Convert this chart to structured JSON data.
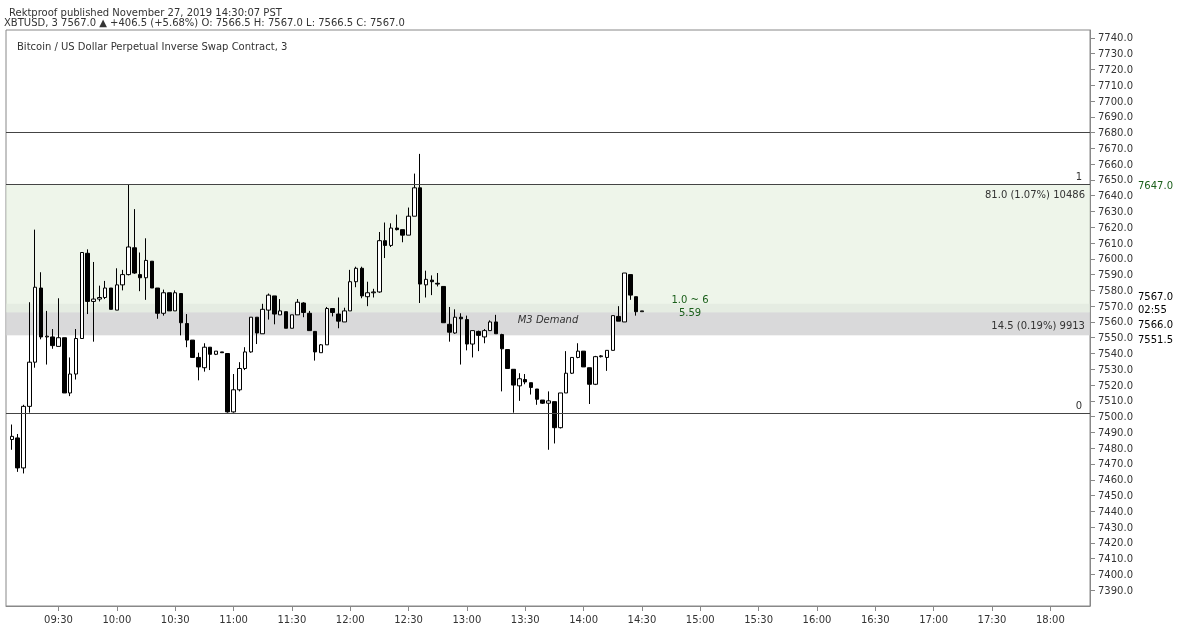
{
  "chart_data": {
    "type": "candlestick",
    "title": "Bitcoin / US Dollar Perpetual Inverse Swap Contract, 3",
    "subtitle": "Rektproof published November 27, 2019 14:30:07 PST",
    "color": "#000000",
    "x": [
      9.1,
      9.15,
      9.2,
      9.25,
      9.3,
      9.35,
      9.4,
      9.45,
      9.5,
      9.55,
      9.6,
      9.65,
      9.7,
      9.75,
      9.8,
      9.85,
      9.9,
      9.95,
      10,
      10.05,
      10.1,
      10.15,
      10.2,
      10.25,
      10.3,
      10.35,
      10.4,
      10.45,
      10.5,
      10.55,
      10.6,
      10.65,
      10.7,
      10.75,
      10.8,
      10.85,
      10.9,
      10.95,
      11,
      11.05,
      11.1,
      11.15,
      11.2,
      11.25,
      11.3,
      11.35,
      11.4,
      11.45,
      11.5,
      11.55,
      11.6,
      11.65,
      11.7,
      11.75,
      11.8,
      11.85,
      11.9,
      11.95,
      12,
      12.05,
      12.1,
      12.15,
      12.2,
      12.25,
      12.3,
      12.35,
      12.4,
      12.45,
      12.5,
      12.55,
      12.6,
      12.65,
      12.7,
      12.75,
      12.8,
      12.85,
      12.9,
      12.95,
      13,
      13.05,
      13.1,
      13.15,
      13.2,
      13.25,
      13.3,
      13.35,
      13.4,
      13.45,
      13.5,
      13.55,
      13.6,
      13.65,
      13.7,
      13.75,
      13.8,
      13.85,
      13.9,
      13.95,
      14,
      14.05,
      14.1,
      14.15,
      14.2,
      14.25,
      14.3,
      14.35,
      14.4,
      14.45,
      14.5
    ],
    "ohlc": [
      [
        7485.5,
        7495,
        7479,
        7487.5
      ],
      [
        7486.5,
        7489,
        7465,
        7467.5
      ],
      [
        7467.5,
        7507.5,
        7464,
        7506.5
      ],
      [
        7506.5,
        7572.5,
        7502.5,
        7534.5
      ],
      [
        7534.5,
        7618.5,
        7531,
        7582
      ],
      [
        7581.5,
        7591.5,
        7549,
        7550.5
      ],
      [
        7550.5,
        7567,
        7533,
        7551
      ],
      [
        7550.5,
        7555.5,
        7543,
        7545
      ],
      [
        7544.5,
        7575,
        7544.5,
        7550
      ],
      [
        7550,
        7550,
        7515,
        7515
      ],
      [
        7515,
        7537.5,
        7513,
        7527
      ],
      [
        7527,
        7555.5,
        7523.5,
        7549.5
      ],
      [
        7549.5,
        7604,
        7549.5,
        7604
      ],
      [
        7603.5,
        7606,
        7565,
        7573
      ],
      [
        7573,
        7598,
        7547.5,
        7574.5
      ],
      [
        7574.5,
        7583,
        7573,
        7575.5
      ],
      [
        7575.5,
        7586,
        7574.5,
        7581.5
      ],
      [
        7581.5,
        7581.5,
        7568,
        7568
      ],
      [
        7567.5,
        7594,
        7567.5,
        7583.5
      ],
      [
        7583.5,
        7593,
        7580,
        7590
      ],
      [
        7590,
        7647,
        7589.5,
        7607.5
      ],
      [
        7607,
        7631.5,
        7590.5,
        7591
      ],
      [
        7590,
        7604,
        7579.5,
        7588
      ],
      [
        7588,
        7613,
        7574,
        7599
      ],
      [
        7598.5,
        7598.5,
        7581.5,
        7581.5
      ],
      [
        7581.5,
        7581.5,
        7562,
        7565.5
      ],
      [
        7565.5,
        7580.5,
        7564,
        7578.5
      ],
      [
        7578.5,
        7578.5,
        7567,
        7567
      ],
      [
        7567,
        7580,
        7567,
        7578.5
      ],
      [
        7578,
        7578,
        7551.5,
        7559.5
      ],
      [
        7559,
        7565,
        7544,
        7548.5
      ],
      [
        7548.5,
        7548.5,
        7537.5,
        7537.5
      ],
      [
        7537.5,
        7540.5,
        7523,
        7531.5
      ],
      [
        7531,
        7546.5,
        7528.5,
        7544
      ],
      [
        7544,
        7544,
        7529.5,
        7539.5
      ],
      [
        7539.5,
        7541.5,
        7539,
        7541.5
      ],
      [
        7541,
        7541,
        7540.5,
        7540.5
      ],
      [
        7540,
        7540,
        7502.5,
        7503
      ],
      [
        7503,
        7527,
        7502.5,
        7517
      ],
      [
        7517,
        7534.5,
        7516,
        7530.5
      ],
      [
        7530.5,
        7544,
        7529.5,
        7541
      ],
      [
        7541,
        7563,
        7540.5,
        7563
      ],
      [
        7563,
        7563,
        7546,
        7553
      ],
      [
        7552.5,
        7571.5,
        7552.5,
        7568
      ],
      [
        7567.5,
        7578,
        7561.5,
        7577
      ],
      [
        7576.5,
        7576.5,
        7558.5,
        7565
      ],
      [
        7564.5,
        7574.5,
        7564.5,
        7567
      ],
      [
        7566.5,
        7566.5,
        7556,
        7556
      ],
      [
        7556,
        7564.5,
        7556,
        7564.5
      ],
      [
        7564.5,
        7574.5,
        7564.5,
        7572.5
      ],
      [
        7572,
        7572.5,
        7563,
        7566
      ],
      [
        7565.5,
        7567,
        7554.5,
        7554.5
      ],
      [
        7554,
        7554,
        7535.5,
        7541
      ],
      [
        7540.5,
        7546,
        7540.5,
        7545.5
      ],
      [
        7545.5,
        7569.5,
        7545.5,
        7568.5
      ],
      [
        7568.5,
        7568.5,
        7563.5,
        7566
      ],
      [
        7565,
        7575.5,
        7556,
        7560.5
      ],
      [
        7560,
        7569,
        7560,
        7567
      ],
      [
        7567,
        7593,
        7567,
        7585.5
      ],
      [
        7585.5,
        7595,
        7582,
        7594
      ],
      [
        7594,
        7595,
        7575,
        7576.5
      ],
      [
        7576,
        7585.5,
        7570,
        7578.5
      ],
      [
        7578.5,
        7581,
        7575.5,
        7579
      ],
      [
        7579,
        7617,
        7578.5,
        7611.5
      ],
      [
        7611.5,
        7623,
        7600.5,
        7608.5
      ],
      [
        7608.5,
        7622.5,
        7607.5,
        7619.5
      ],
      [
        7619.5,
        7628,
        7618,
        7618.5
      ],
      [
        7618.5,
        7618.5,
        7610.5,
        7615
      ],
      [
        7615,
        7632.5,
        7615,
        7627
      ],
      [
        7627,
        7654,
        7627,
        7645
      ],
      [
        7645,
        7666.5,
        7572,
        7584
      ],
      [
        7583.5,
        7592.5,
        7575.5,
        7587
      ],
      [
        7586.5,
        7589.5,
        7577,
        7585.5
      ],
      [
        7584.5,
        7591,
        7582.5,
        7584
      ],
      [
        7582.5,
        7582.5,
        7559.5,
        7559.5
      ],
      [
        7558.5,
        7569.5,
        7547.5,
        7553.5
      ],
      [
        7553,
        7568,
        7552.5,
        7563
      ],
      [
        7563,
        7565.5,
        7533,
        7562
      ],
      [
        7561.5,
        7564,
        7542,
        7546
      ],
      [
        7546,
        7554.5,
        7537.5,
        7554.5
      ],
      [
        7554,
        7554.5,
        7541.5,
        7551.5
      ],
      [
        7550.5,
        7555.5,
        7546.5,
        7554.5
      ],
      [
        7554.5,
        7561,
        7554.5,
        7560
      ],
      [
        7560,
        7564.5,
        7552.5,
        7552.5
      ],
      [
        7552,
        7552.5,
        7516,
        7543
      ],
      [
        7542.5,
        7542.5,
        7530.5,
        7530.5
      ],
      [
        7530,
        7530,
        7502.5,
        7520
      ],
      [
        7519.5,
        7527.5,
        7510,
        7524
      ],
      [
        7523.5,
        7527,
        7520.5,
        7522
      ],
      [
        7521.5,
        7521.5,
        7514,
        7518.5
      ],
      [
        7517.5,
        7517.5,
        7507.5,
        7511
      ],
      [
        7510.5,
        7510.5,
        7508,
        7508.5
      ],
      [
        7508.5,
        7516,
        7479,
        7510
      ],
      [
        7509.5,
        7509.5,
        7483,
        7493
      ],
      [
        7493,
        7515,
        7492.5,
        7515
      ],
      [
        7515,
        7541.5,
        7515,
        7527.5
      ],
      [
        7527.5,
        7537.5,
        7527,
        7537.5
      ],
      [
        7537.5,
        7546.5,
        7537,
        7541.5
      ],
      [
        7541.5,
        7541.5,
        7531.5,
        7531.5
      ],
      [
        7531,
        7531,
        7508,
        7520.5
      ],
      [
        7520.5,
        7538.5,
        7520,
        7538
      ],
      [
        7538,
        7539,
        7537.5,
        7538.5
      ],
      [
        7537.5,
        7542,
        7529,
        7542
      ],
      [
        7542,
        7564,
        7542,
        7564
      ],
      [
        7563.5,
        7570,
        7560.5,
        7560.5
      ],
      [
        7560,
        7591,
        7560,
        7591
      ],
      [
        7590,
        7590,
        7574,
        7577
      ],
      [
        7576,
        7576,
        7564,
        7566.5
      ],
      [
        7566.5,
        7567,
        7566.5,
        7567
      ]
    ],
    "xlim": [
      9.05,
      18.34
    ],
    "xticks": [
      {
        "value": 9.5,
        "label": "09:30"
      },
      {
        "value": 10,
        "label": "10:00"
      },
      {
        "value": 10.5,
        "label": "10:30"
      },
      {
        "value": 11,
        "label": "11:00"
      },
      {
        "value": 11.5,
        "label": "11:30"
      },
      {
        "value": 12,
        "label": "12:00"
      },
      {
        "value": 12.5,
        "label": "12:30"
      },
      {
        "value": 13,
        "label": "13:00"
      },
      {
        "value": 13.5,
        "label": "13:30"
      },
      {
        "value": 14,
        "label": "14:00"
      },
      {
        "value": 14.5,
        "label": "14:30"
      },
      {
        "value": 15,
        "label": "15:00"
      },
      {
        "value": 15.5,
        "label": "15:30"
      },
      {
        "value": 16,
        "label": "16:00"
      },
      {
        "value": 16.5,
        "label": "16:30"
      },
      {
        "value": 17,
        "label": "17:00"
      },
      {
        "value": 17.5,
        "label": "17:30"
      },
      {
        "value": 18,
        "label": "18:00"
      }
    ],
    "ylim": [
      7380,
      7745
    ],
    "yticks": [
      {
        "value": 7390,
        "label": "7390.0"
      },
      {
        "value": 7400,
        "label": "7400.0"
      },
      {
        "value": 7410,
        "label": "7410.0"
      },
      {
        "value": 7420,
        "label": "7420.0"
      },
      {
        "value": 7430,
        "label": "7430.0"
      },
      {
        "value": 7440,
        "label": "7440.0"
      },
      {
        "value": 7450,
        "label": "7450.0"
      },
      {
        "value": 7460,
        "label": "7460.0"
      },
      {
        "value": 7470,
        "label": "7470.0"
      },
      {
        "value": 7480,
        "label": "7480.0"
      },
      {
        "value": 7490,
        "label": "7490.0"
      },
      {
        "value": 7500,
        "label": "7500.0"
      },
      {
        "value": 7510,
        "label": "7510.0"
      },
      {
        "value": 7520,
        "label": "7520.0"
      },
      {
        "value": 7530,
        "label": "7530.0"
      },
      {
        "value": 7540,
        "label": "7540.0"
      },
      {
        "value": 7550,
        "label": "7550.0"
      },
      {
        "value": 7560,
        "label": "7560.0"
      },
      {
        "value": 7570,
        "label": "7570.0"
      },
      {
        "value": 7580,
        "label": "7580.0"
      },
      {
        "value": 7590,
        "label": "7590.0"
      },
      {
        "value": 7600,
        "label": "7600.0"
      },
      {
        "value": 7610,
        "label": "7610.0"
      },
      {
        "value": 7620,
        "label": "7620.0"
      },
      {
        "value": 7630,
        "label": "7630.0"
      },
      {
        "value": 7640,
        "label": "7640.0"
      },
      {
        "value": 7650,
        "label": "7650.0"
      },
      {
        "value": 7660,
        "label": "7660.0"
      },
      {
        "value": 7670,
        "label": "7670.0"
      },
      {
        "value": 7680,
        "label": "7680.0"
      },
      {
        "value": 7690,
        "label": "7690.0"
      },
      {
        "value": 7700,
        "label": "7700.0"
      },
      {
        "value": 7710,
        "label": "7710.0"
      },
      {
        "value": 7720,
        "label": "7720.0"
      },
      {
        "value": 7730,
        "label": "7730.0"
      },
      {
        "value": 7740,
        "label": "7740.0"
      }
    ],
    "ref_lines": [
      {
        "axis": "y",
        "value": 7647,
        "color": "#444444"
      },
      {
        "axis": "y",
        "value": 7502,
        "color": "#444444"
      },
      {
        "axis": "y",
        "value": 7680,
        "color": "#444444"
      }
    ],
    "bands": [
      {
        "axis": "y",
        "from": 7551.5,
        "to": 7571.5,
        "label": "M3 Demand",
        "color": "#d9d9dd"
      },
      {
        "axis": "y",
        "from": 7566,
        "to": 7647,
        "label": "81.0 (1.07%) 10486",
        "color": "#e2efdc"
      },
      {
        "axis": "y",
        "from": 7551.5,
        "to": 7566,
        "label": "14.5 (0.19%) 9913",
        "color": "#cfcfcf"
      }
    ],
    "annotations": [
      "XBTUSD, 3 7567.0 ▲ +406.5 (+5.68%) O: 7566.5 H: 7567.0 L: 7566.5 C: 7567.0",
      "1",
      "0",
      "1.0 ~ 6",
      "5.59",
      "7647.0",
      "7567.0",
      "02:55",
      "7566.0",
      "7551.5"
    ]
  }
}
